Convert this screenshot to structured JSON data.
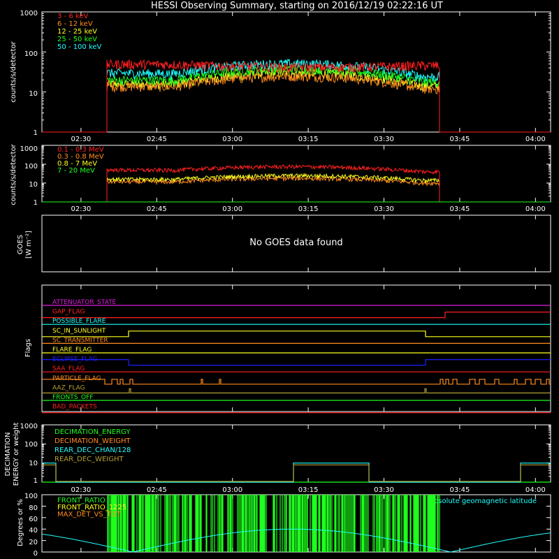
{
  "title": "HESSI Observing Summary, starting on 2016/12/19 02:22:16 UT",
  "time_ticks": [
    "02:30",
    "02:45",
    "03:00",
    "03:15",
    "03:30",
    "03:45",
    "04:00"
  ],
  "colors": {
    "bg": "#000000",
    "axis": "#ffffff",
    "red": "#ff2020",
    "orange": "#ff8c1e",
    "yellow": "#ffff1e",
    "green": "#1eff1e",
    "cyan": "#1effff",
    "magenta": "#e01ee0",
    "blue": "#1e1eff",
    "olive": "#b4a032",
    "pink": "#ff50a0",
    "darkgreen": "#1ea032"
  },
  "panels": {
    "p1": {
      "ylabel": "counts/s/detector",
      "ticks": [
        "1",
        "10",
        "100",
        "1000"
      ]
    },
    "p2": {
      "ylabel": "counts/s/detector",
      "ticks": [
        "1",
        "10",
        "100",
        "1000"
      ]
    },
    "p3": {
      "ylabel_line1": "GOES",
      "ylabel_line2": "[W m⁻²]",
      "message": "No GOES data found"
    },
    "p4": {
      "ylabel": "Flags"
    },
    "p5": {
      "ylabel_line1": "DECIMATION",
      "ylabel_line2": "ENERGY or weight",
      "ticks": [
        "1",
        "10",
        "100",
        "1000"
      ]
    },
    "p6": {
      "ylabel": "Degrees or %",
      "ticks": [
        "0",
        "20",
        "40",
        "60",
        "80",
        "100"
      ],
      "annotation": "Absolute geomagnetic latitude"
    }
  },
  "chart_data": [
    {
      "type": "line",
      "title": "HESSI Observing Summary, starting on 2016/12/19 02:22:16 UT",
      "ylabel": "counts/s/detector",
      "yscale": "log",
      "ylim": [
        1,
        1000
      ],
      "x_range": [
        "02:22:16",
        "04:03:00"
      ],
      "data_interval": [
        "02:35",
        "03:41"
      ],
      "series": [
        {
          "name": "3 - 6 keV",
          "color": "#ff2020",
          "start": 50,
          "mid": 42,
          "end": 46
        },
        {
          "name": "6 - 12 keV",
          "color": "#ff8c1e",
          "start": 14,
          "mid": 25,
          "end": 12
        },
        {
          "name": "12 - 25 keV",
          "color": "#ffff1e",
          "start": 16,
          "mid": 30,
          "end": 14
        },
        {
          "name": "25 - 50 keV",
          "color": "#1eff1e",
          "start": 20,
          "mid": 38,
          "end": 18
        },
        {
          "name": "50 - 100 keV",
          "color": "#1effff",
          "start": 30,
          "mid": 52,
          "end": 24
        }
      ]
    },
    {
      "type": "line",
      "ylabel": "counts/s/detector",
      "yscale": "log",
      "ylim": [
        1,
        1000
      ],
      "series": [
        {
          "name": "0.1 - 0.3 MeV",
          "color": "#ff2020",
          "start": 50,
          "mid": 75,
          "end": 40
        },
        {
          "name": "0.3 - 0.8 MeV",
          "color": "#ff8c1e",
          "start": 12,
          "mid": 18,
          "end": 10
        },
        {
          "name": "0.8 - 7 MeV",
          "color": "#ffff1e",
          "start": 16,
          "mid": 25,
          "end": 14
        },
        {
          "name": "7 - 20 MeV",
          "color": "#1eff1e",
          "start": 1,
          "mid": 1,
          "end": 1
        }
      ]
    },
    {
      "type": "flags",
      "ylabel": "Flags",
      "flags": [
        {
          "name": "ATTENUATOR_STATE",
          "color": "#e01ee0"
        },
        {
          "name": "GAP_FLAG",
          "color": "#ff2020"
        },
        {
          "name": "POSSIBLE_FLARE",
          "color": "#1effff"
        },
        {
          "name": "SC_IN_SUNLIGHT",
          "color": "#ffff1e"
        },
        {
          "name": "SC_TRANSMITTER",
          "color": "#ff8c1e"
        },
        {
          "name": "FLARE_FLAG",
          "color": "#ffff1e"
        },
        {
          "name": "ECLIPSE_FLAG",
          "color": "#1e1eff"
        },
        {
          "name": "SAA_FLAG",
          "color": "#ff2020"
        },
        {
          "name": "PARTICLE_FLAG",
          "color": "#ff8c1e"
        },
        {
          "name": "AAZ_FLAG",
          "color": "#b4a032"
        },
        {
          "name": "FRONTS_OFF",
          "color": "#1eff1e"
        },
        {
          "name": "BAD_PACKETS",
          "color": "#ff2020"
        }
      ]
    },
    {
      "type": "line",
      "ylabel": "DECIMATION ENERGY or weight",
      "yscale": "log",
      "ylim": [
        1,
        1000
      ],
      "series": [
        {
          "name": "DECIMATION_ENERGY",
          "color": "#1eff1e"
        },
        {
          "name": "DECIMATION_WEIGHT",
          "color": "#ff8c1e"
        },
        {
          "name": "REAR_DEC_CHAN/128",
          "color": "#1effff"
        },
        {
          "name": "REAR_DEC_WEIGHT",
          "color": "#b4a032"
        }
      ]
    },
    {
      "type": "line",
      "ylabel": "Degrees or %",
      "ylim": [
        0,
        100
      ],
      "series": [
        {
          "name": "FRONT_RATIO",
          "color": "#1eff1e"
        },
        {
          "name": "FRONT_RATIO_1225",
          "color": "#ffff1e"
        },
        {
          "name": "MAX_DET_VS_TOT",
          "color": "#ff8c1e"
        },
        {
          "name": "Absolute geomagnetic latitude",
          "color": "#1effff"
        }
      ]
    }
  ]
}
